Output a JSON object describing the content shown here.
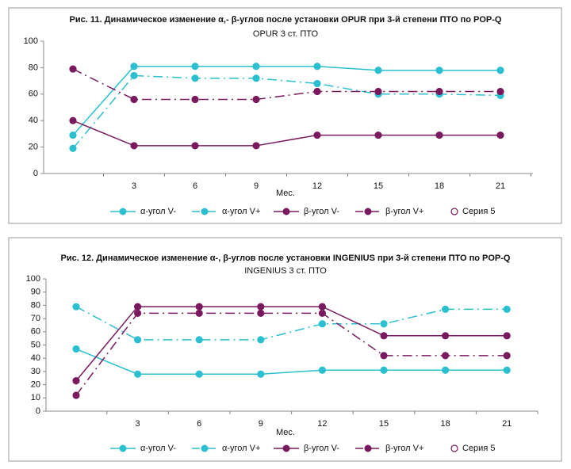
{
  "chart_data": [
    {
      "type": "line",
      "title": "Рис. 11. Динамическое изменение α,- β-углов после установки OPUR при 3-й степени ПТО по POP-Q",
      "subtitle": "OPUR 3 ст. ПТО",
      "x_label": "Мес.",
      "categories": [
        null,
        3,
        6,
        9,
        12,
        15,
        18,
        21
      ],
      "ylim": [
        0,
        100
      ],
      "yticks": [
        0,
        20,
        40,
        60,
        80,
        100
      ],
      "grid": false,
      "series": [
        {
          "name": "α-угол V-",
          "color": "#2bbfcf",
          "line_style": "solid",
          "marker": "filled",
          "values": [
            29,
            81,
            81,
            81,
            81,
            78,
            78,
            78
          ]
        },
        {
          "name": "α-угол V+",
          "color": "#2bbfcf",
          "line_style": "dashdot",
          "marker": "filled",
          "values": [
            19,
            74,
            72,
            72,
            68,
            60,
            60,
            59
          ]
        },
        {
          "name": "β-угол V-",
          "color": "#7a1a5e",
          "line_style": "solid",
          "marker": "filled",
          "values": [
            40,
            21,
            21,
            21,
            29,
            29,
            29,
            29
          ]
        },
        {
          "name": "β-угол V+",
          "color": "#7a1a5e",
          "line_style": "dashdot",
          "marker": "filled",
          "values": [
            79,
            56,
            56,
            56,
            62,
            62,
            62,
            62
          ]
        },
        {
          "name": "Серия 5",
          "color": "#7a1a5e",
          "line_style": "none",
          "marker": "open",
          "values": [
            null,
            null,
            null,
            null,
            null,
            null,
            null,
            null
          ]
        }
      ]
    },
    {
      "type": "line",
      "title": "Рис. 12. Динамическое изменение α-, β-углов после установки INGENIUS при 3-й степени ПТО по POP-Q",
      "subtitle": "INGENIUS 3 ст. ПТО",
      "x_label": "Мес.",
      "categories": [
        null,
        3,
        6,
        9,
        12,
        15,
        18,
        21
      ],
      "ylim": [
        0,
        100
      ],
      "yticks": [
        0,
        10,
        20,
        30,
        40,
        50,
        60,
        70,
        80,
        90,
        100
      ],
      "grid": false,
      "series": [
        {
          "name": "α-угол V-",
          "color": "#2bbfcf",
          "line_style": "solid",
          "marker": "filled",
          "values": [
            47,
            28,
            28,
            28,
            31,
            31,
            31,
            31
          ]
        },
        {
          "name": "α-угол V+",
          "color": "#2bbfcf",
          "line_style": "dashdot",
          "marker": "filled",
          "values": [
            79,
            54,
            54,
            54,
            66,
            66,
            77,
            77
          ]
        },
        {
          "name": "β-угол V-",
          "color": "#7a1a5e",
          "line_style": "solid",
          "marker": "filled",
          "values": [
            23,
            79,
            79,
            79,
            79,
            57,
            57,
            57
          ]
        },
        {
          "name": "β-угол V+",
          "color": "#7a1a5e",
          "line_style": "dashdot",
          "marker": "filled",
          "values": [
            12,
            74,
            74,
            74,
            74,
            42,
            42,
            42
          ]
        },
        {
          "name": "Серия 5",
          "color": "#7a1a5e",
          "line_style": "none",
          "marker": "open",
          "values": [
            null,
            null,
            null,
            null,
            null,
            null,
            null,
            null
          ]
        }
      ]
    }
  ]
}
